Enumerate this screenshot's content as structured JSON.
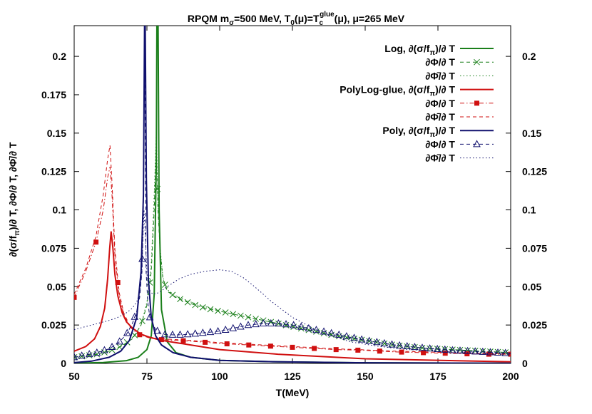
{
  "chart_data": {
    "type": "line",
    "title": "RPQM  m_σ=500 MeV, T_0(μ)=T_c^glue(μ), μ=265 MeV",
    "title_parts": {
      "pre": "RPQM  m",
      "sub1": "σ",
      "mid1": "=500 MeV, T",
      "sub2": "0",
      "mid2": "(μ)=T",
      "sub3": "c",
      "sup3": "glue",
      "post": "(μ), μ=265 MeV"
    },
    "xlabel": "T(MeV)",
    "ylabel": "∂(σ/f_π)/∂ T, ∂Φ/∂ T, ∂Φ̄/∂ T",
    "ylabel_parts": {
      "pre": "∂(σ/f",
      "sub": "π",
      "post": ")/∂ T, ∂Φ/∂ T, ∂Φ̄/∂ T"
    },
    "xlim": [
      50,
      200
    ],
    "ylim": [
      0,
      0.22
    ],
    "x_ticks": [
      "50",
      "75",
      "100",
      "125",
      "150",
      "175",
      "200"
    ],
    "y_ticks": [
      "0",
      "0.025",
      "0.05",
      "0.075",
      "0.1",
      "0.125",
      "0.15",
      "0.175",
      "0.2"
    ],
    "y_ticks_right": [
      "0",
      "0.025",
      "0.05",
      "0.075",
      "0.1",
      "0.125",
      "0.15",
      "0.2"
    ],
    "grid": false,
    "legend_position": "top-right",
    "colors": {
      "green": "#1a7f1a",
      "red": "#d01010",
      "blue": "#10106e"
    },
    "series": [
      {
        "name": "Log, ∂(σ/f_π)/∂ T",
        "legend_pre": "Log, ∂(σ/f",
        "legend_sub": "π",
        "legend_post": ")/∂ T",
        "color": "#1a7f1a",
        "style": "solid",
        "marker": "none",
        "x": [
          50,
          60,
          68,
          72,
          75,
          76.5,
          77.5,
          78.2,
          78.6,
          79.2,
          80,
          82,
          85,
          90,
          100,
          120,
          150,
          200
        ],
        "y": [
          0.0002,
          0.0006,
          0.0018,
          0.004,
          0.009,
          0.018,
          0.045,
          0.13,
          0.3,
          0.1,
          0.035,
          0.014,
          0.007,
          0.004,
          0.002,
          0.001,
          0.0004,
          0.0001
        ]
      },
      {
        "name": "∂Φ/∂ T (Log)",
        "legend_text": "∂Φ/∂ T",
        "color": "#1a7f1a",
        "style": "dashed",
        "marker": "cross",
        "x": [
          50,
          54,
          58,
          62,
          66,
          70,
          73,
          75,
          76.5,
          77.5,
          78.2,
          78.8,
          79.5,
          80.5,
          82,
          85,
          90,
          95,
          100,
          105,
          110,
          115,
          120,
          130,
          140,
          150,
          160,
          170,
          180,
          190,
          200
        ],
        "y": [
          0.004,
          0.005,
          0.006,
          0.008,
          0.011,
          0.016,
          0.025,
          0.038,
          0.06,
          0.1,
          0.141,
          0.1,
          0.074,
          0.055,
          0.047,
          0.043,
          0.039,
          0.036,
          0.034,
          0.032,
          0.03,
          0.028,
          0.026,
          0.022,
          0.018,
          0.015,
          0.012,
          0.01,
          0.009,
          0.008,
          0.007
        ]
      },
      {
        "name": "∂Φ̄/∂ T (Log)",
        "legend_text": "∂Φ̄/∂ T",
        "color": "#1a7f1a",
        "style": "dotted",
        "marker": "none",
        "x": [
          50,
          54,
          58,
          62,
          66,
          70,
          73,
          75,
          76.5,
          77.5,
          78.2,
          78.8,
          79.5,
          80.5,
          82,
          85,
          90,
          95,
          100,
          105,
          110,
          115,
          120,
          130,
          140,
          150,
          160,
          170,
          180,
          190,
          200
        ],
        "y": [
          0.004,
          0.005,
          0.006,
          0.008,
          0.011,
          0.016,
          0.025,
          0.04,
          0.065,
          0.11,
          0.15,
          0.105,
          0.076,
          0.056,
          0.048,
          0.044,
          0.04,
          0.037,
          0.034,
          0.032,
          0.03,
          0.028,
          0.026,
          0.022,
          0.018,
          0.015,
          0.012,
          0.01,
          0.009,
          0.008,
          0.007
        ]
      },
      {
        "name": "PolyLog-glue, ∂(σ/f_π)/∂ T",
        "legend_pre": "PolyLog-glue, ∂(σ/f",
        "legend_sub": "π",
        "legend_post": ")/∂ T",
        "color": "#d01010",
        "style": "solid",
        "marker": "none",
        "x": [
          50,
          54,
          57,
          59,
          60.5,
          61.5,
          62.2,
          62.7,
          63.3,
          64,
          65,
          66.5,
          68,
          70,
          73,
          76,
          80,
          90,
          100,
          120,
          150,
          200
        ],
        "y": [
          0.008,
          0.011,
          0.016,
          0.024,
          0.036,
          0.055,
          0.075,
          0.086,
          0.075,
          0.058,
          0.044,
          0.033,
          0.027,
          0.023,
          0.019,
          0.017,
          0.015,
          0.012,
          0.009,
          0.006,
          0.003,
          0.001
        ]
      },
      {
        "name": "∂Φ/∂ T (PolyLog-glue)",
        "legend_text": "∂Φ/∂ T",
        "color": "#d01010",
        "style": "dashdot",
        "marker": "square",
        "x": [
          50,
          54,
          57.5,
          60,
          61.5,
          62.3,
          63,
          64,
          65.5,
          67,
          69,
          72,
          76,
          80,
          90,
          100,
          110,
          120,
          130,
          140,
          150,
          160,
          170,
          180,
          190,
          200
        ],
        "y": [
          0.043,
          0.06,
          0.079,
          0.1,
          0.121,
          0.128,
          0.11,
          0.07,
          0.044,
          0.032,
          0.024,
          0.019,
          0.0165,
          0.0155,
          0.0145,
          0.013,
          0.012,
          0.011,
          0.01,
          0.009,
          0.0085,
          0.0075,
          0.007,
          0.0065,
          0.006,
          0.006
        ]
      },
      {
        "name": "∂Φ̄/∂ T (PolyLog-glue)",
        "legend_text": "∂Φ̄/∂ T",
        "color": "#d01010",
        "style": "dashed",
        "marker": "none",
        "x": [
          50,
          54,
          57.5,
          60,
          61.5,
          62.3,
          63,
          64,
          65.5,
          67,
          69,
          72,
          76,
          80,
          90,
          100,
          110,
          120,
          130,
          140,
          150,
          160,
          170,
          180,
          190,
          200
        ],
        "y": [
          0.045,
          0.062,
          0.083,
          0.11,
          0.133,
          0.142,
          0.118,
          0.074,
          0.046,
          0.033,
          0.025,
          0.02,
          0.017,
          0.016,
          0.015,
          0.0135,
          0.0125,
          0.0115,
          0.0105,
          0.0095,
          0.0088,
          0.008,
          0.0075,
          0.007,
          0.0065,
          0.0062
        ]
      },
      {
        "name": "Poly, ∂(σ/f_π)/∂ T",
        "legend_pre": "Poly, ∂(σ/f",
        "legend_sub": "π",
        "legend_post": ")/∂ T",
        "color": "#10106e",
        "style": "solid",
        "marker": "none",
        "x": [
          50,
          56,
          62,
          66,
          69,
          71.5,
          73,
          73.8,
          74.3,
          74.8,
          75.5,
          76.5,
          78,
          80,
          84,
          90,
          100,
          120,
          150,
          200
        ],
        "y": [
          0.0005,
          0.0015,
          0.004,
          0.008,
          0.015,
          0.03,
          0.06,
          0.11,
          0.25,
          0.12,
          0.055,
          0.03,
          0.018,
          0.012,
          0.007,
          0.004,
          0.002,
          0.001,
          0.0004,
          0.0001
        ]
      },
      {
        "name": "∂Φ/∂ T (Poly)",
        "legend_text": "∂Φ/∂ T",
        "color": "#10106e",
        "style": "dashed",
        "marker": "triangle",
        "x": [
          50,
          54,
          58,
          62,
          65,
          68,
          70,
          71.5,
          72.5,
          73.3,
          73.8,
          74.2,
          74.7,
          75.3,
          76,
          78,
          80,
          85,
          90,
          95,
          100,
          105,
          110,
          115,
          120,
          125,
          130,
          140,
          150,
          160,
          170,
          180,
          190,
          200
        ],
        "y": [
          0.004,
          0.0055,
          0.007,
          0.0095,
          0.013,
          0.019,
          0.026,
          0.034,
          0.043,
          0.06,
          0.1,
          0.216,
          0.06,
          0.04,
          0.03,
          0.022,
          0.019,
          0.0185,
          0.019,
          0.02,
          0.021,
          0.023,
          0.025,
          0.026,
          0.026,
          0.025,
          0.023,
          0.019,
          0.015,
          0.012,
          0.01,
          0.0085,
          0.0075,
          0.0065
        ]
      },
      {
        "name": "∂Φ̄/∂ T (Poly)",
        "legend_text": "∂Φ̄/∂ T",
        "color": "#10106e",
        "style": "dotted",
        "marker": "none",
        "x": [
          50,
          54,
          58,
          62,
          65,
          68,
          70,
          71.5,
          72.5,
          73.2,
          73.6,
          74,
          74.5,
          75,
          75.8,
          77,
          79,
          82,
          86,
          90,
          95,
          100,
          104,
          108,
          112,
          118,
          125,
          135,
          145,
          155,
          165,
          175,
          185,
          200
        ],
        "y": [
          0.022,
          0.024,
          0.026,
          0.028,
          0.03,
          0.033,
          0.036,
          0.04,
          0.046,
          0.058,
          0.08,
          0.1,
          0.08,
          0.058,
          0.048,
          0.045,
          0.046,
          0.05,
          0.055,
          0.058,
          0.06,
          0.061,
          0.06,
          0.056,
          0.05,
          0.04,
          0.03,
          0.02,
          0.014,
          0.011,
          0.009,
          0.008,
          0.007,
          0.006
        ]
      }
    ]
  }
}
